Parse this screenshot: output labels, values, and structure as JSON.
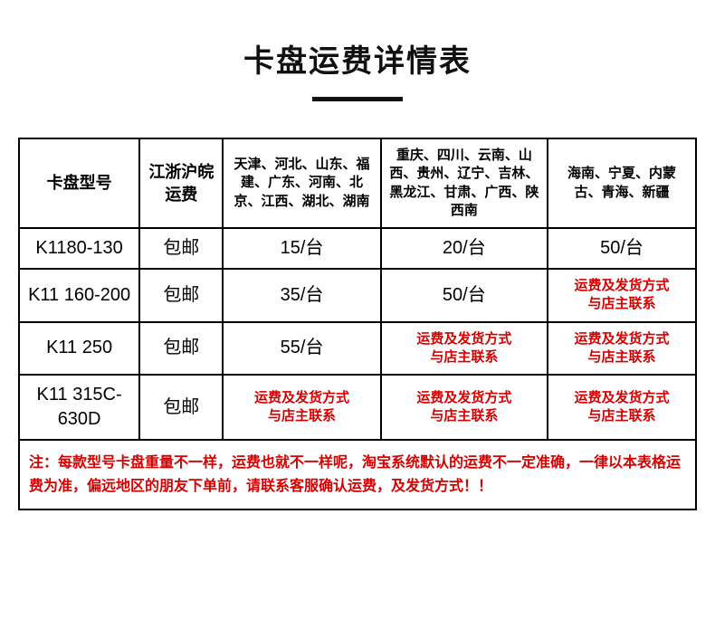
{
  "title": "卡盘运费详情表",
  "columns": [
    "卡盘型号",
    "江浙沪皖\n运费",
    "天津、河北、山东、福建、广东、河南、北京、江西、湖北、湖南",
    "重庆、四川、云南、山西、贵州、辽宁、吉林、黑龙江、甘肃、广西、陕西南",
    "海南、宁夏、内蒙古、青海、新疆"
  ],
  "rows": [
    {
      "model": "K1180-130",
      "c1": "包邮",
      "c2": "15/台",
      "c3": "20/台",
      "c4": "50/台",
      "red": []
    },
    {
      "model": "K11 160-200",
      "c1": "包邮",
      "c2": "35/台",
      "c3": "50/台",
      "c4": "运费及发货方式\n与店主联系",
      "red": [
        "c4"
      ]
    },
    {
      "model": "K11 250",
      "c1": "包邮",
      "c2": "55/台",
      "c3": "运费及发货方式\n与店主联系",
      "c4": "运费及发货方式\n与店主联系",
      "red": [
        "c3",
        "c4"
      ]
    },
    {
      "model": "K11 315C-630D",
      "c1": "包邮",
      "c2": "运费及发货方式\n与店主联系",
      "c3": "运费及发货方式\n与店主联系",
      "c4": "运费及发货方式\n与店主联系",
      "red": [
        "c2",
        "c3",
        "c4"
      ]
    }
  ],
  "footnote": "注：每款型号卡盘重量不一样，运费也就不一样呢，淘宝系统默认的运费不一定准确，一律以本表格运费为准，偏远地区的朋友下单前，请联系客服确认运费，及发货方式！！"
}
